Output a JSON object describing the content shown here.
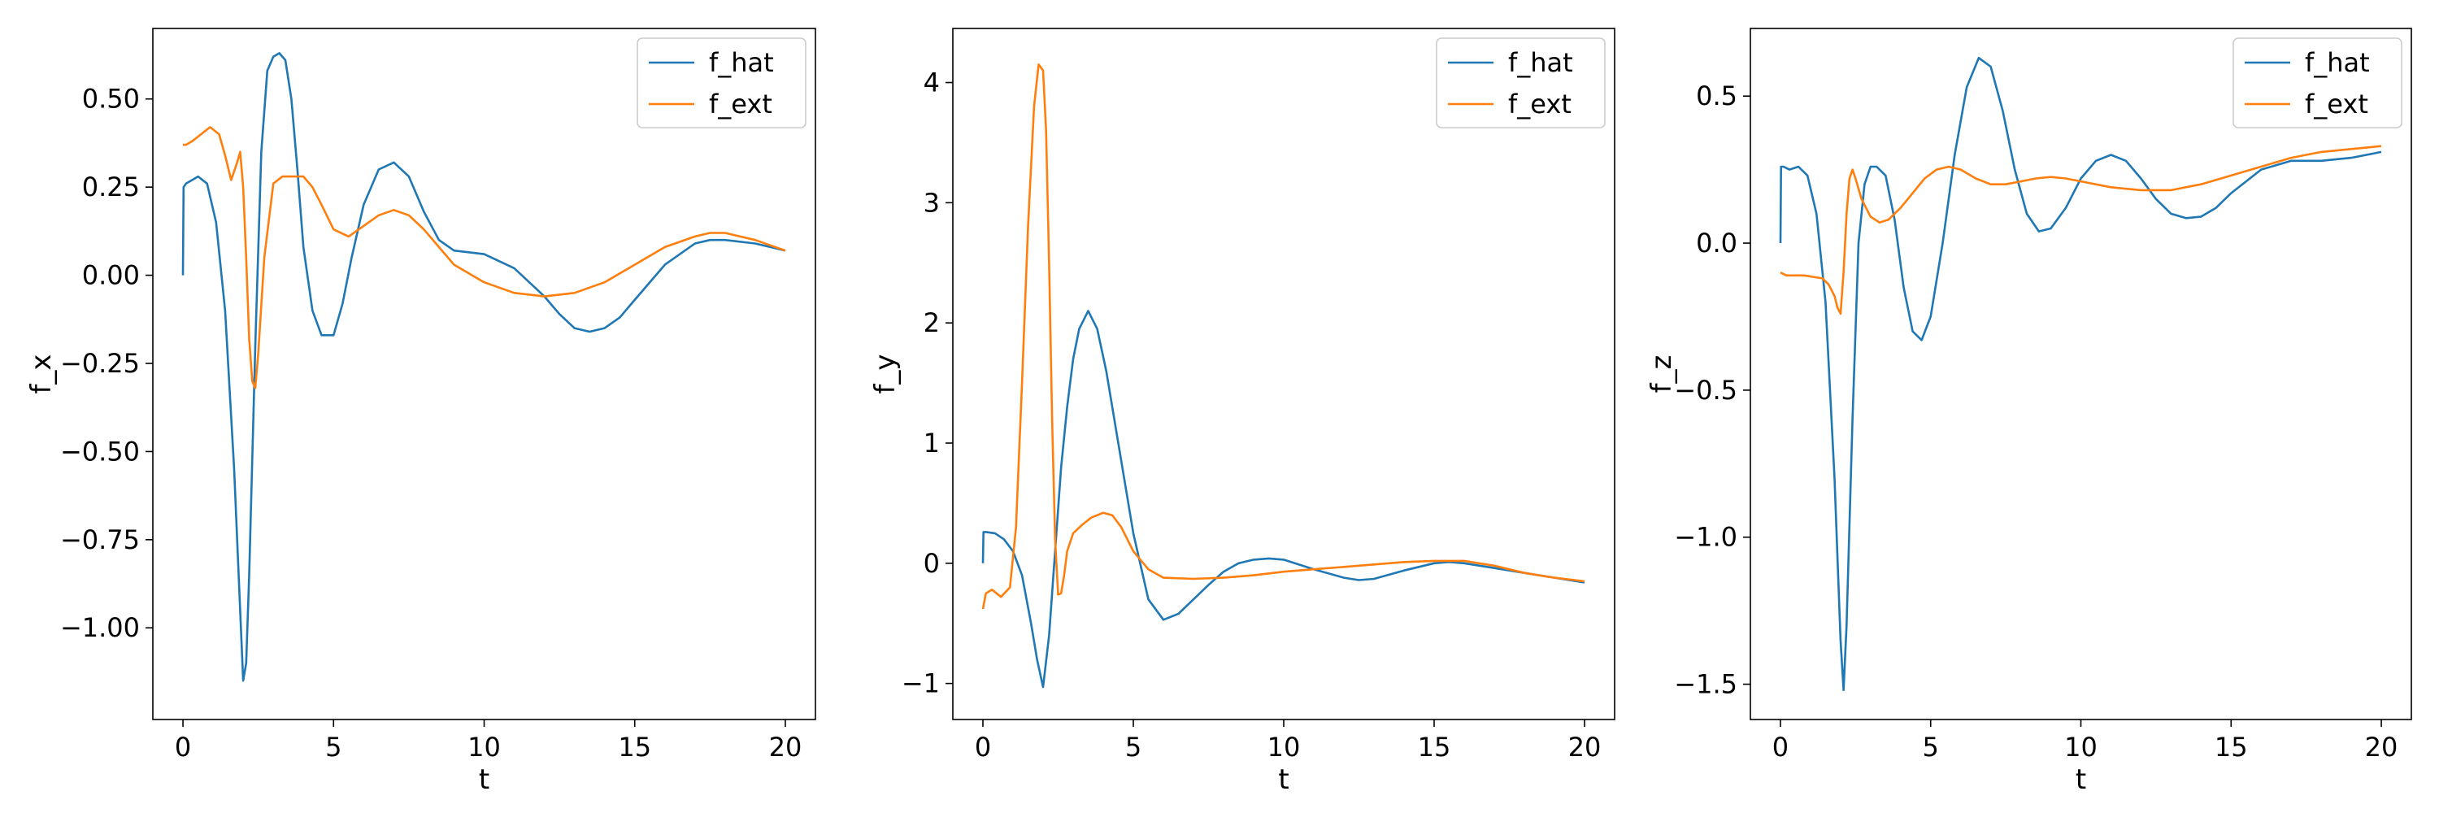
{
  "chart_data": [
    {
      "type": "line",
      "xlabel": "t",
      "ylabel": "f_x",
      "xlim": [
        -1,
        21
      ],
      "ylim": [
        -1.26,
        0.7
      ],
      "xticks": [
        0,
        5,
        10,
        15,
        20
      ],
      "xtick_labels": [
        "0",
        "5",
        "10",
        "15",
        "20"
      ],
      "yticks": [
        0.5,
        0.25,
        0.0,
        -0.25,
        -0.5,
        -0.75,
        -1.0
      ],
      "ytick_labels": [
        "0.50",
        "0.25",
        "0.00",
        "−0.25",
        "−0.50",
        "−0.75",
        "−1.00"
      ],
      "legend_position": "top-right",
      "grid": false,
      "series": [
        {
          "name": "f_hat",
          "color": "#1f77b4",
          "x": [
            0,
            0.02,
            0.1,
            0.3,
            0.5,
            0.8,
            1.1,
            1.4,
            1.7,
            1.9,
            2.0,
            2.1,
            2.2,
            2.4,
            2.6,
            2.8,
            3.0,
            3.2,
            3.4,
            3.6,
            3.8,
            4.0,
            4.3,
            4.6,
            5.0,
            5.3,
            5.6,
            6.0,
            6.5,
            7.0,
            7.5,
            8.0,
            8.5,
            9.0,
            10.0,
            11.0,
            12.0,
            12.5,
            13.0,
            13.5,
            14.0,
            14.5,
            15.0,
            16.0,
            17.0,
            17.5,
            18.0,
            19.0,
            20.0
          ],
          "y": [
            0.0,
            0.25,
            0.26,
            0.27,
            0.28,
            0.26,
            0.15,
            -0.1,
            -0.55,
            -0.95,
            -1.15,
            -1.1,
            -0.85,
            -0.2,
            0.35,
            0.58,
            0.62,
            0.63,
            0.61,
            0.5,
            0.3,
            0.08,
            -0.1,
            -0.17,
            -0.17,
            -0.08,
            0.05,
            0.2,
            0.3,
            0.32,
            0.28,
            0.18,
            0.1,
            0.07,
            0.06,
            0.02,
            -0.06,
            -0.11,
            -0.15,
            -0.16,
            -0.15,
            -0.12,
            -0.07,
            0.03,
            0.09,
            0.1,
            0.1,
            0.09,
            0.07
          ]
        },
        {
          "name": "f_ext",
          "color": "#ff7f0e",
          "x": [
            0,
            0.1,
            0.3,
            0.6,
            0.9,
            1.2,
            1.4,
            1.6,
            1.8,
            1.9,
            2.0,
            2.1,
            2.2,
            2.3,
            2.4,
            2.5,
            2.7,
            3.0,
            3.3,
            3.6,
            4.0,
            4.3,
            4.6,
            5.0,
            5.5,
            6.0,
            6.5,
            7.0,
            7.5,
            8.0,
            8.5,
            9.0,
            10.0,
            11.0,
            12.0,
            13.0,
            14.0,
            15.0,
            16.0,
            17.0,
            17.5,
            18.0,
            18.5,
            19.0,
            20.0
          ],
          "y": [
            0.37,
            0.37,
            0.38,
            0.4,
            0.42,
            0.4,
            0.34,
            0.27,
            0.32,
            0.35,
            0.25,
            0.05,
            -0.18,
            -0.3,
            -0.32,
            -0.22,
            0.05,
            0.26,
            0.28,
            0.28,
            0.28,
            0.25,
            0.2,
            0.13,
            0.11,
            0.14,
            0.17,
            0.185,
            0.17,
            0.13,
            0.08,
            0.03,
            -0.02,
            -0.05,
            -0.06,
            -0.05,
            -0.02,
            0.03,
            0.08,
            0.11,
            0.12,
            0.12,
            0.11,
            0.1,
            0.07
          ]
        }
      ]
    },
    {
      "type": "line",
      "xlabel": "t",
      "ylabel": "f_y",
      "xlim": [
        -1,
        21
      ],
      "ylim": [
        -1.3,
        4.45
      ],
      "xticks": [
        0,
        5,
        10,
        15,
        20
      ],
      "xtick_labels": [
        "0",
        "5",
        "10",
        "15",
        "20"
      ],
      "yticks": [
        4,
        3,
        2,
        1,
        0,
        -1
      ],
      "ytick_labels": [
        "4",
        "3",
        "2",
        "1",
        "0",
        "−1"
      ],
      "legend_position": "top-right",
      "grid": false,
      "series": [
        {
          "name": "f_hat",
          "color": "#1f77b4",
          "x": [
            0,
            0.02,
            0.1,
            0.4,
            0.7,
            1.0,
            1.3,
            1.6,
            1.8,
            2.0,
            2.2,
            2.4,
            2.6,
            2.8,
            3.0,
            3.2,
            3.5,
            3.8,
            4.1,
            4.5,
            5.0,
            5.5,
            6.0,
            6.5,
            7.0,
            7.5,
            8.0,
            8.5,
            9.0,
            9.5,
            10.0,
            11.0,
            12.0,
            12.5,
            13.0,
            14.0,
            15.0,
            15.5,
            16.0,
            17.0,
            18.0,
            19.0,
            20.0
          ],
          "y": [
            0.0,
            0.26,
            0.26,
            0.25,
            0.2,
            0.1,
            -0.1,
            -0.5,
            -0.8,
            -1.03,
            -0.6,
            0.1,
            0.8,
            1.3,
            1.7,
            1.95,
            2.1,
            1.95,
            1.6,
            1.0,
            0.25,
            -0.3,
            -0.47,
            -0.42,
            -0.3,
            -0.18,
            -0.07,
            0.0,
            0.03,
            0.04,
            0.03,
            -0.05,
            -0.12,
            -0.14,
            -0.13,
            -0.06,
            0.0,
            0.01,
            0.0,
            -0.04,
            -0.08,
            -0.12,
            -0.16
          ]
        },
        {
          "name": "f_ext",
          "color": "#ff7f0e",
          "x": [
            0,
            0.1,
            0.3,
            0.6,
            0.9,
            1.1,
            1.3,
            1.5,
            1.7,
            1.85,
            2.0,
            2.1,
            2.2,
            2.3,
            2.4,
            2.5,
            2.6,
            2.7,
            2.8,
            3.0,
            3.3,
            3.6,
            4.0,
            4.3,
            4.6,
            5.0,
            5.5,
            6.0,
            7.0,
            8.0,
            9.0,
            10.0,
            11.0,
            12.0,
            13.0,
            14.0,
            15.0,
            16.0,
            17.0,
            18.0,
            19.0,
            20.0
          ],
          "y": [
            -0.38,
            -0.25,
            -0.22,
            -0.28,
            -0.2,
            0.3,
            1.5,
            2.8,
            3.8,
            4.15,
            4.1,
            3.6,
            2.5,
            1.2,
            0.2,
            -0.26,
            -0.25,
            -0.1,
            0.1,
            0.25,
            0.32,
            0.38,
            0.42,
            0.4,
            0.3,
            0.1,
            -0.05,
            -0.12,
            -0.13,
            -0.12,
            -0.1,
            -0.07,
            -0.05,
            -0.03,
            -0.01,
            0.01,
            0.02,
            0.02,
            -0.02,
            -0.08,
            -0.12,
            -0.15
          ]
        }
      ]
    },
    {
      "type": "line",
      "xlabel": "t",
      "ylabel": "f_z",
      "xlim": [
        -1,
        21
      ],
      "ylim": [
        -1.62,
        0.73
      ],
      "xticks": [
        0,
        5,
        10,
        15,
        20
      ],
      "xtick_labels": [
        "0",
        "5",
        "10",
        "15",
        "20"
      ],
      "yticks": [
        0.5,
        0.0,
        -0.5,
        -1.0,
        -1.5
      ],
      "ytick_labels": [
        "0.5",
        "0.0",
        "−0.5",
        "−1.0",
        "−1.5"
      ],
      "legend_position": "top-right",
      "grid": false,
      "series": [
        {
          "name": "f_hat",
          "color": "#1f77b4",
          "x": [
            0,
            0.02,
            0.1,
            0.3,
            0.6,
            0.9,
            1.2,
            1.5,
            1.8,
            2.0,
            2.1,
            2.2,
            2.4,
            2.6,
            2.8,
            3.0,
            3.2,
            3.5,
            3.8,
            4.1,
            4.4,
            4.7,
            5.0,
            5.4,
            5.8,
            6.2,
            6.6,
            7.0,
            7.4,
            7.8,
            8.2,
            8.6,
            9.0,
            9.5,
            10.0,
            10.5,
            11.0,
            11.5,
            12.0,
            12.5,
            13.0,
            13.5,
            14.0,
            14.5,
            15.0,
            16.0,
            17.0,
            18.0,
            19.0,
            20.0
          ],
          "y": [
            0.0,
            0.26,
            0.26,
            0.25,
            0.26,
            0.23,
            0.1,
            -0.2,
            -0.8,
            -1.35,
            -1.52,
            -1.3,
            -0.6,
            0.0,
            0.2,
            0.26,
            0.26,
            0.23,
            0.08,
            -0.15,
            -0.3,
            -0.33,
            -0.25,
            0.0,
            0.3,
            0.53,
            0.63,
            0.6,
            0.45,
            0.25,
            0.1,
            0.04,
            0.05,
            0.12,
            0.22,
            0.28,
            0.3,
            0.28,
            0.22,
            0.15,
            0.1,
            0.085,
            0.09,
            0.12,
            0.17,
            0.25,
            0.28,
            0.28,
            0.29,
            0.31
          ]
        },
        {
          "name": "f_ext",
          "color": "#ff7f0e",
          "x": [
            0,
            0.2,
            0.5,
            0.8,
            1.1,
            1.4,
            1.6,
            1.8,
            1.9,
            2.0,
            2.1,
            2.2,
            2.3,
            2.4,
            2.5,
            2.7,
            3.0,
            3.3,
            3.6,
            4.0,
            4.4,
            4.8,
            5.2,
            5.6,
            6.0,
            6.5,
            7.0,
            7.5,
            8.0,
            8.5,
            9.0,
            9.5,
            10.0,
            11.0,
            12.0,
            13.0,
            14.0,
            15.0,
            16.0,
            17.0,
            18.0,
            19.0,
            20.0
          ],
          "y": [
            -0.1,
            -0.11,
            -0.11,
            -0.11,
            -0.115,
            -0.12,
            -0.14,
            -0.18,
            -0.22,
            -0.24,
            -0.1,
            0.1,
            0.22,
            0.25,
            0.22,
            0.15,
            0.09,
            0.07,
            0.08,
            0.12,
            0.17,
            0.22,
            0.25,
            0.26,
            0.25,
            0.22,
            0.2,
            0.2,
            0.21,
            0.22,
            0.225,
            0.22,
            0.21,
            0.19,
            0.18,
            0.18,
            0.2,
            0.23,
            0.26,
            0.29,
            0.31,
            0.32,
            0.33
          ]
        }
      ]
    }
  ]
}
